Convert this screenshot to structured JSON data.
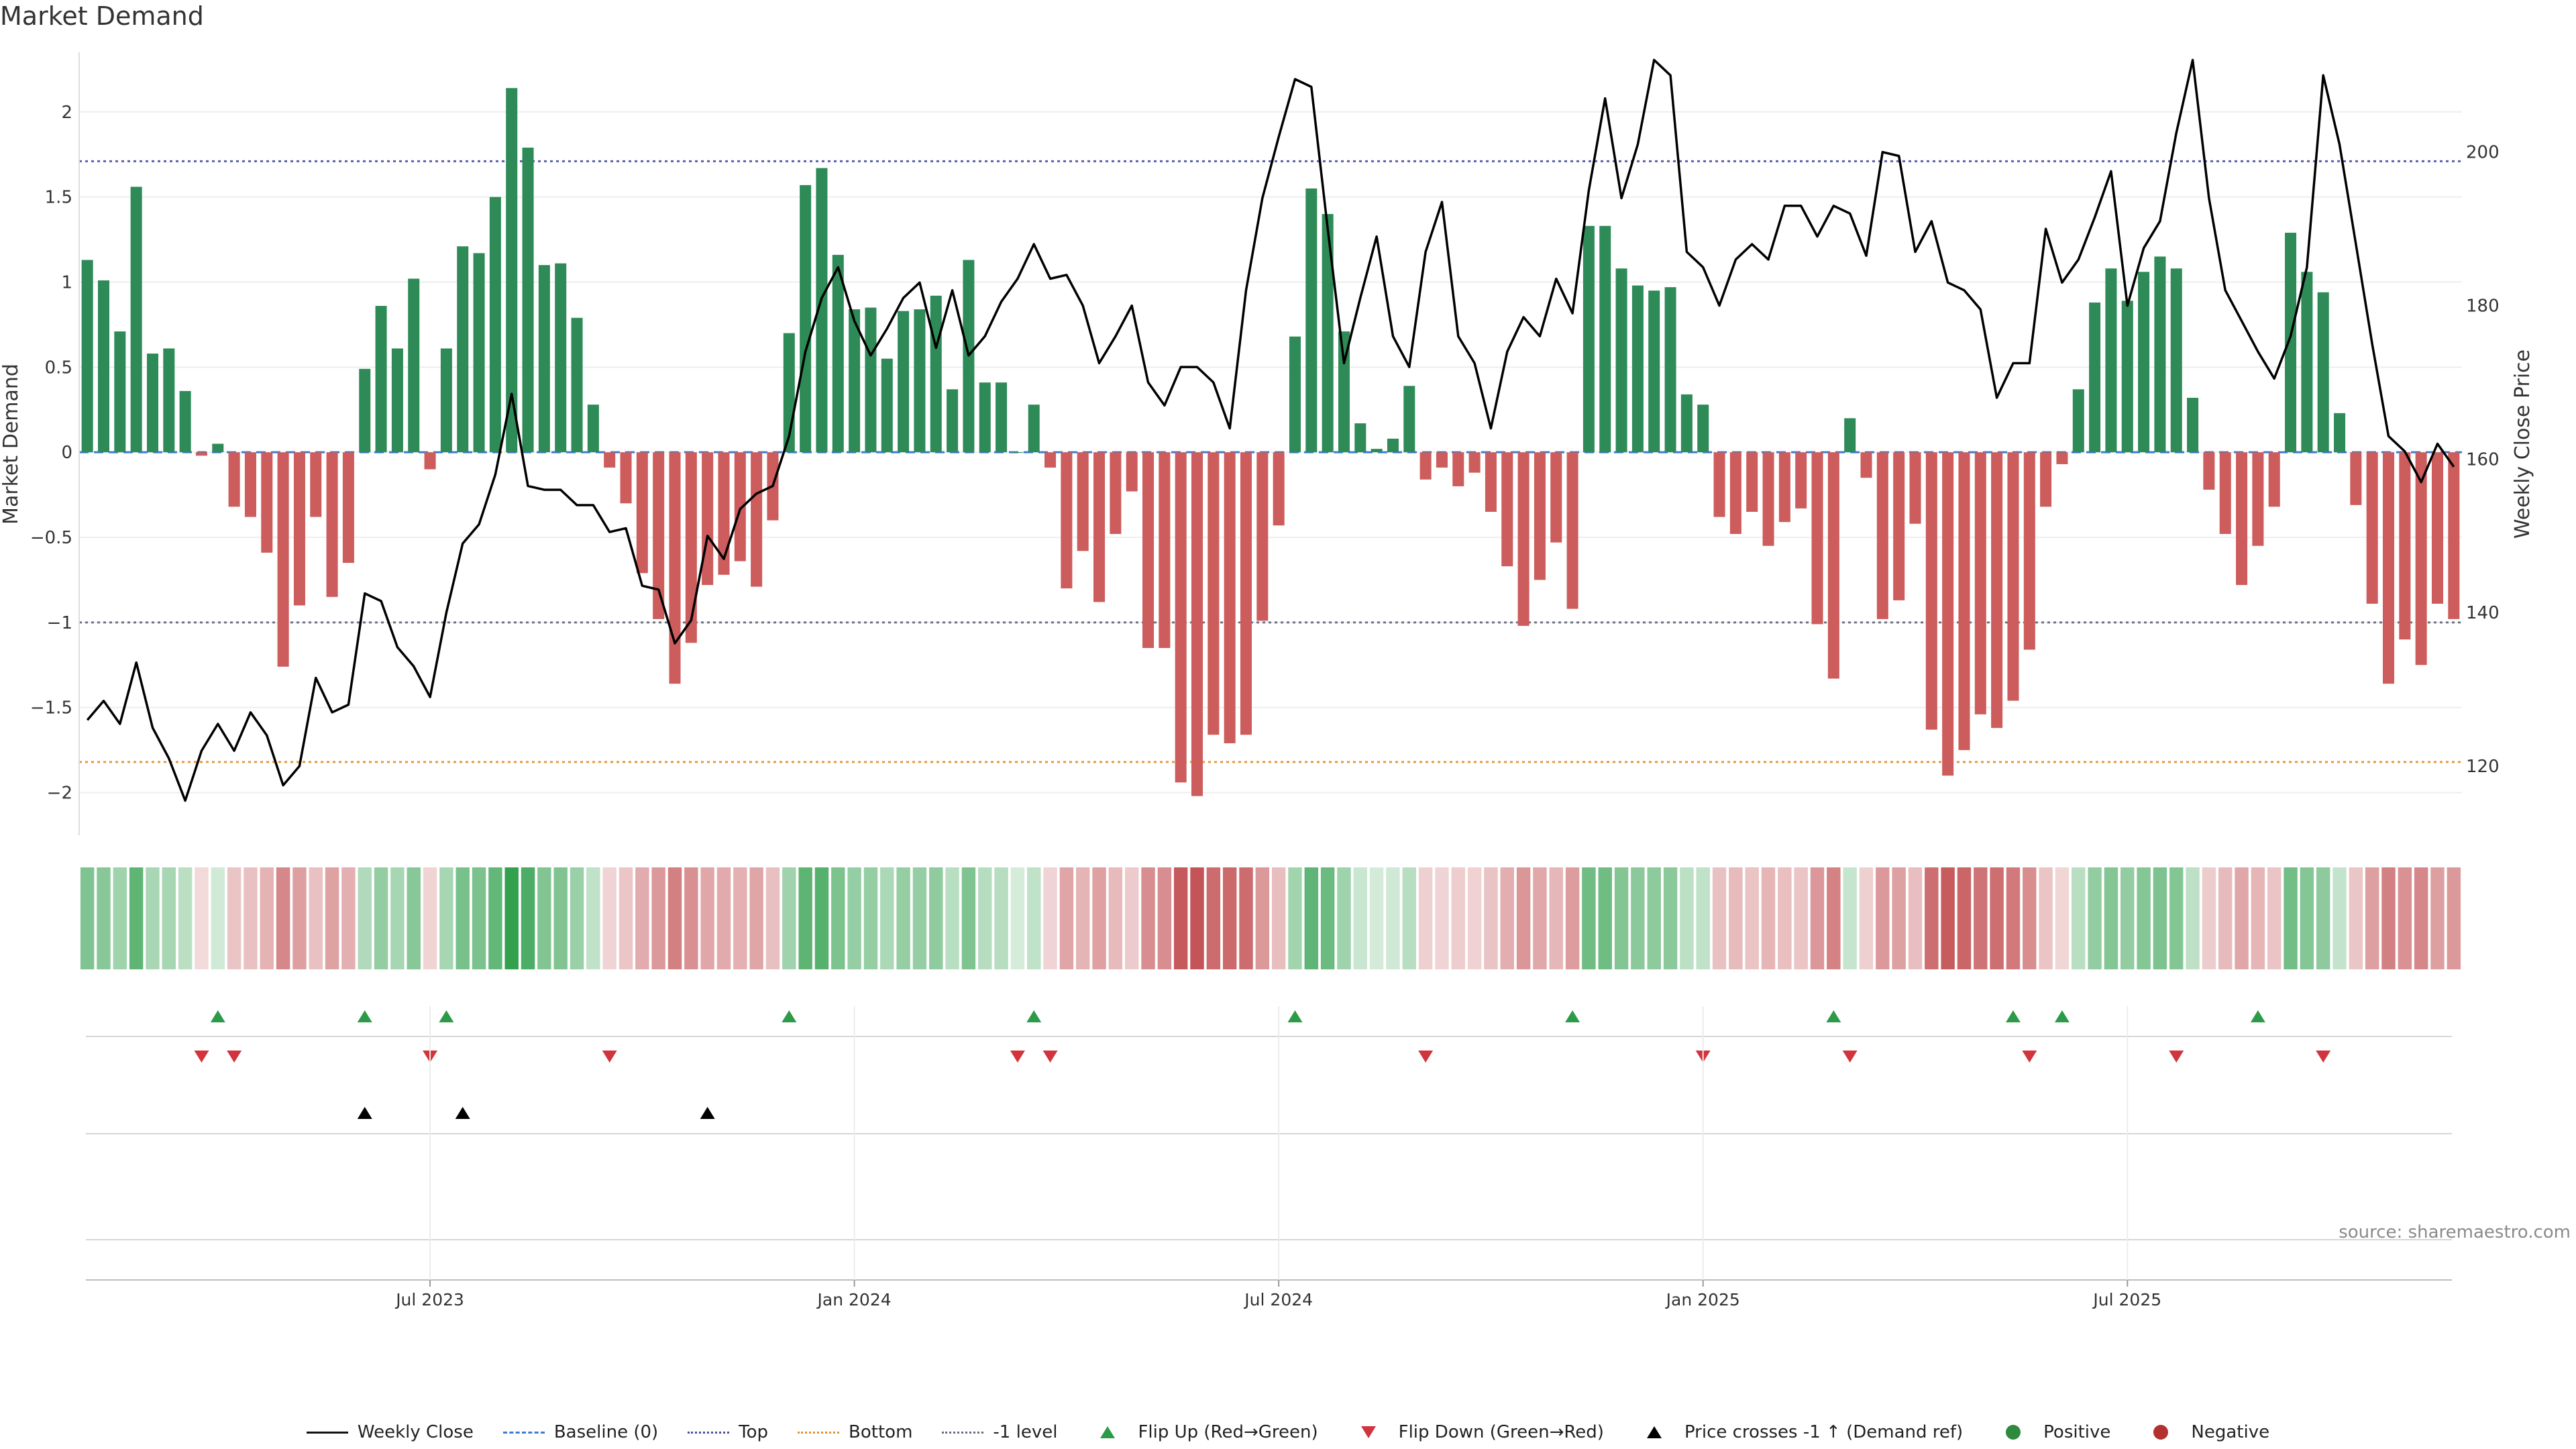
{
  "title": "Market Demand",
  "source": "source: sharemaestro.com",
  "legend": {
    "weekly_close": "Weekly Close",
    "baseline": "Baseline (0)",
    "top": "Top",
    "bottom": "Bottom",
    "minus1": "-1 level",
    "flip_up": "Flip Up (Red→Green)",
    "flip_down": "Flip Down (Green→Red)",
    "price_cross": "Price crosses -1 ↑ (Demand ref)",
    "positive": "Positive",
    "negative": "Negative"
  },
  "chart_data": {
    "type": "bar",
    "title": "Market Demand",
    "ylabel": "Market Demand",
    "y2label": "Weekly Close Price",
    "ylim": [
      -2.25,
      2.35
    ],
    "y2lim": [
      111.0,
      213.0
    ],
    "yticks": [
      2,
      1.5,
      1,
      0.5,
      0,
      -0.5,
      -1,
      -1.5,
      -2
    ],
    "ytick_labels": [
      "2",
      "1.5",
      "1",
      "0.5",
      "0",
      "−0.5",
      "−1",
      "−1.5",
      "−2"
    ],
    "y2ticks": [
      200,
      180,
      160,
      140,
      120
    ],
    "y2tick_labels": [
      "200",
      "180",
      "160",
      "140",
      "120"
    ],
    "levels": {
      "top": 1.71,
      "bottom": -1.82,
      "minus1": -1.0,
      "baseline": 0
    },
    "colors": {
      "positive": "#2e8b57",
      "negative": "#cd5c5c",
      "close": "#000000"
    },
    "xtick_weeks": [
      21.5,
      47.5,
      73.5,
      99.5,
      125.5
    ],
    "xtick_labels": [
      "Jul 2023",
      "Jan 2024",
      "Jul 2024",
      "Jan 2025",
      "Jul 2025"
    ],
    "demand": [
      1.13,
      1.01,
      0.71,
      1.56,
      0.58,
      0.61,
      0.36,
      -0.02,
      0.05,
      -0.32,
      -0.38,
      -0.59,
      -1.26,
      -0.9,
      -0.38,
      -0.85,
      -0.65,
      0.49,
      0.86,
      0.61,
      1.02,
      -0.1,
      0.61,
      1.21,
      1.17,
      1.5,
      2.14,
      1.79,
      1.1,
      1.11,
      0.79,
      0.28,
      -0.09,
      -0.3,
      -0.71,
      -0.98,
      -1.36,
      -1.12,
      -0.78,
      -0.72,
      -0.64,
      -0.79,
      -0.4,
      0.7,
      1.57,
      1.67,
      1.16,
      0.84,
      0.85,
      0.55,
      0.83,
      0.84,
      0.92,
      0.37,
      1.13,
      0.41,
      0.41,
      0.0,
      0.28,
      -0.09,
      -0.8,
      -0.58,
      -0.88,
      -0.48,
      -0.23,
      -1.15,
      -1.15,
      -1.94,
      -2.02,
      -1.66,
      -1.71,
      -1.66,
      -0.99,
      -0.43,
      0.68,
      1.55,
      1.4,
      0.71,
      0.17,
      0.02,
      0.08,
      0.39,
      -0.16,
      -0.09,
      -0.2,
      -0.12,
      -0.35,
      -0.67,
      -1.02,
      -0.75,
      -0.53,
      -0.92,
      1.33,
      1.33,
      1.08,
      0.98,
      0.95,
      0.97,
      0.34,
      0.28,
      -0.38,
      -0.48,
      -0.35,
      -0.55,
      -0.41,
      -0.33,
      -1.01,
      -1.33,
      0.2,
      -0.15,
      -0.98,
      -0.87,
      -0.42,
      -1.63,
      -1.9,
      -1.75,
      -1.54,
      -1.62,
      -1.46,
      -1.16,
      -0.32,
      -0.07,
      0.37,
      0.88,
      1.08,
      0.89,
      1.06,
      1.15,
      1.08,
      0.32,
      -0.22,
      -0.48,
      -0.78,
      -0.55,
      -0.32,
      1.29,
      1.06,
      0.94,
      0.23,
      -0.31,
      -0.89,
      -1.36,
      -1.1,
      -1.25,
      -0.89,
      -0.98
    ],
    "close": [
      126.0,
      128.5,
      125.5,
      133.5,
      125.0,
      121.0,
      115.5,
      122.0,
      125.5,
      122.0,
      127.0,
      124.0,
      117.5,
      120.0,
      131.5,
      127.0,
      128.0,
      142.5,
      141.5,
      135.5,
      133.0,
      129.0,
      140.0,
      149.0,
      151.5,
      158.0,
      168.5,
      156.5,
      156.0,
      156.0,
      154.0,
      154.0,
      150.5,
      151.0,
      143.5,
      143.0,
      136.0,
      139.0,
      150.0,
      147.0,
      153.5,
      155.5,
      156.5,
      163.0,
      174.0,
      181.0,
      185.0,
      178.0,
      173.5,
      177.0,
      181.0,
      183.0,
      174.5,
      182.0,
      173.5,
      176.0,
      180.5,
      183.5,
      188.0,
      183.5,
      184.0,
      180.0,
      172.5,
      176.0,
      180.0,
      170.0,
      167.0,
      172.0,
      172.0,
      170.0,
      164.0,
      182.0,
      194.0,
      202.0,
      209.5,
      208.5,
      190.0,
      172.5,
      181.0,
      189.0,
      176.0,
      172.0,
      187.0,
      193.5,
      176.0,
      172.5,
      164.0,
      174.0,
      178.5,
      176.0,
      183.5,
      179.0,
      195.0,
      207.0,
      194.0,
      201.0,
      212.0,
      210.0,
      187.0,
      185.0,
      180.0,
      186.0,
      188.0,
      186.0,
      193.0,
      193.0,
      189.0,
      193.0,
      192.0,
      186.5,
      200.0,
      199.5,
      187.0,
      191.0,
      183.0,
      182.0,
      179.5,
      168.0,
      172.5,
      172.5,
      190.0,
      183.0,
      186.0,
      191.5,
      197.5,
      180.0,
      187.5,
      191.0,
      202.5,
      212.0,
      194.0,
      182.0,
      178.0,
      174.0,
      170.5,
      176.0,
      185.0,
      210.0,
      201.0,
      188.0,
      175.0,
      163.0,
      161.0,
      157.0,
      162.0,
      159.0
    ],
    "flip_up": [
      8,
      17,
      22,
      43,
      58,
      74,
      91,
      107,
      118,
      121,
      133
    ],
    "flip_down": [
      7,
      9,
      21,
      32,
      57,
      59,
      82,
      99,
      108,
      119,
      128,
      137
    ],
    "price_cross": [
      17,
      23,
      38
    ]
  }
}
